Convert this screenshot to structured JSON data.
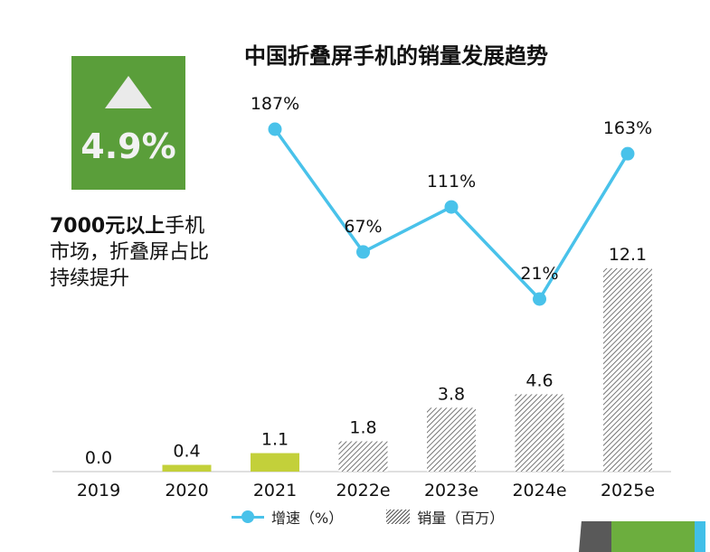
{
  "title": "中国折叠屏手机的销量发展趋势",
  "badge": {
    "value": "4.9%",
    "icon": "triangle-up-icon",
    "color": "#5a9e3a"
  },
  "note": {
    "bold": "7000元以上",
    "rest1": "手机",
    "line2": "市场，折叠屏占比",
    "line3": "持续提升"
  },
  "legend": {
    "line": "增速（%）",
    "bar": "销量（百万）"
  },
  "colors": {
    "line": "#49c2ea",
    "bar_actual": "#c3d03a",
    "hatch": "#555555"
  },
  "chart_data": {
    "type": "bar",
    "categories": [
      "2019",
      "2020",
      "2021",
      "2022e",
      "2023e",
      "2024e",
      "2025e"
    ],
    "series": [
      {
        "name": "销量（百万）",
        "type": "bar",
        "values": [
          0.0,
          0.4,
          1.1,
          1.8,
          3.8,
          4.6,
          12.1
        ],
        "labels": [
          "0.0",
          "0.4",
          "1.1",
          "1.8",
          "3.8",
          "4.6",
          "12.1"
        ],
        "style": [
          "solid",
          "solid",
          "solid",
          "hatched",
          "hatched",
          "hatched",
          "hatched"
        ]
      },
      {
        "name": "增速（%）",
        "type": "line",
        "values": [
          null,
          null,
          187,
          67,
          111,
          21,
          163
        ],
        "labels": [
          "",
          "",
          "187%",
          "67%",
          "111%",
          "21%",
          "163%"
        ]
      }
    ],
    "ylim_bar": [
      0,
      12.1
    ],
    "ylim_line": [
      21,
      187
    ],
    "grid": false,
    "legend_position": "bottom"
  }
}
